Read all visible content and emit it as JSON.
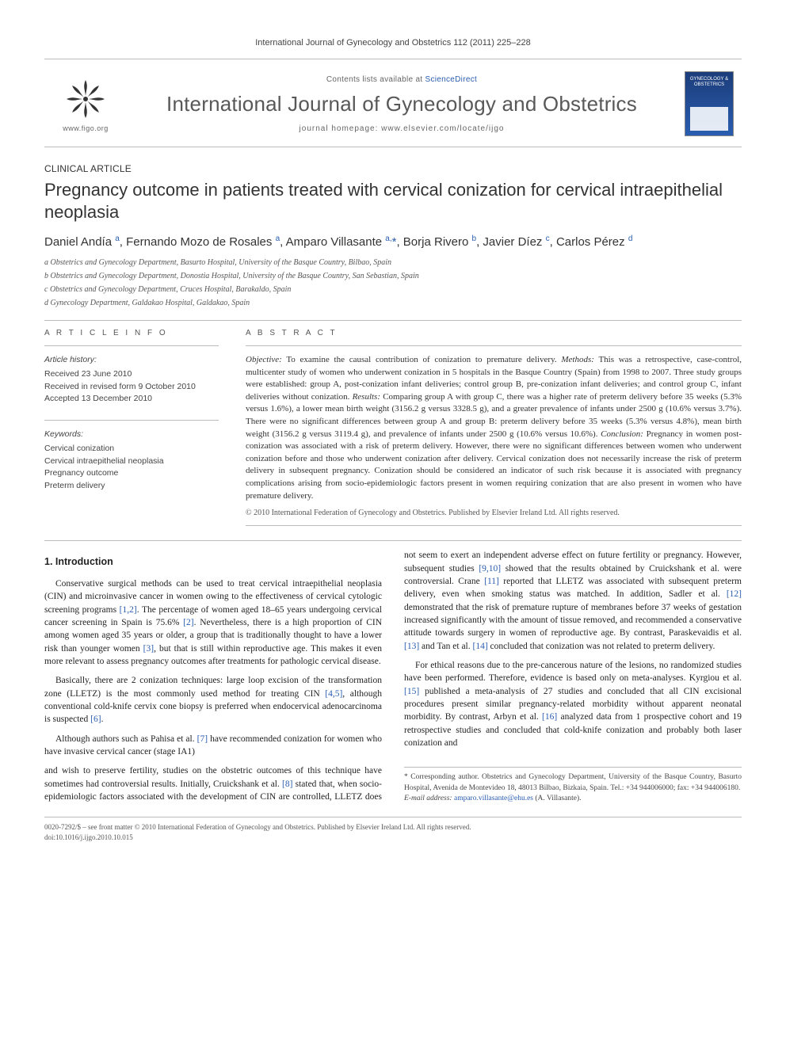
{
  "topline": "International Journal of Gynecology and Obstetrics 112 (2011) 225–228",
  "masthead": {
    "figo_url": "www.figo.org",
    "contents_prefix": "Contents lists available at ",
    "contents_link": "ScienceDirect",
    "journal_name": "International Journal of Gynecology and Obstetrics",
    "homepage_prefix": "journal homepage: ",
    "homepage_url": "www.elsevier.com/locate/ijgo",
    "cover_text": "GYNECOLOGY & OBSTETRICS"
  },
  "article_type": "CLINICAL ARTICLE",
  "title": "Pregnancy outcome in patients treated with cervical conization for cervical intraepithelial neoplasia",
  "authors_html": "Daniel Andía <sup>a</sup>, Fernando Mozo de Rosales <sup>a</sup>, Amparo Villasante <sup>a,</sup><span class='star'>*</span>, Borja Rivero <sup>b</sup>, Javier Díez <sup>c</sup>, Carlos Pérez <sup>d</sup>",
  "affiliations": [
    "a  Obstetrics and Gynecology Department, Basurto Hospital, University of the Basque Country, Bilbao, Spain",
    "b  Obstetrics and Gynecology Department, Donostia Hospital, University of the Basque Country, San Sebastian, Spain",
    "c  Obstetrics and Gynecology Department, Cruces Hospital, Barakaldo, Spain",
    "d  Gynecology Department, Galdakao Hospital, Galdakao, Spain"
  ],
  "info_heading": "A R T I C L E    I N F O",
  "abstract_heading": "A B S T R A C T",
  "history": {
    "label": "Article history:",
    "lines": [
      "Received 23 June 2010",
      "Received in revised form 9 October 2010",
      "Accepted 13 December 2010"
    ]
  },
  "keywords": {
    "label": "Keywords:",
    "items": [
      "Cervical conization",
      "Cervical intraepithelial neoplasia",
      "Pregnancy outcome",
      "Preterm delivery"
    ]
  },
  "abstract": {
    "objective_label": "Objective:",
    "objective": " To examine the causal contribution of conization to premature delivery. ",
    "methods_label": "Methods:",
    "methods": " This was a retrospective, case-control, multicenter study of women who underwent conization in 5 hospitals in the Basque Country (Spain) from 1998 to 2007. Three study groups were established: group A, post-conization infant deliveries; control group B, pre-conization infant deliveries; and control group C, infant deliveries without conization. ",
    "results_label": "Results:",
    "results": " Comparing group A with group C, there was a higher rate of preterm delivery before 35 weeks (5.3% versus 1.6%), a lower mean birth weight (3156.2 g versus 3328.5 g), and a greater prevalence of infants under 2500 g (10.6% versus 3.7%). There were no significant differences between group A and group B: preterm delivery before 35 weeks (5.3% versus 4.8%), mean birth weight (3156.2 g versus 3119.4 g), and prevalence of infants under 2500 g (10.6% versus 10.6%). ",
    "conclusion_label": "Conclusion:",
    "conclusion": " Pregnancy in women post-conization was associated with a risk of preterm delivery. However, there were no significant differences between women who underwent conization before and those who underwent conization after delivery. Cervical conization does not necessarily increase the risk of preterm delivery in subsequent pregnancy. Conization should be considered an indicator of such risk because it is associated with pregnancy complications arising from socio-epidemiologic factors present in women requiring conization that are also present in women who have premature delivery.",
    "copyright": "© 2010 International Federation of Gynecology and Obstetrics. Published by Elsevier Ireland Ltd. All rights reserved."
  },
  "intro_heading": "1. Introduction",
  "body": {
    "p1a": "Conservative surgical methods can be used to treat cervical intraepithelial neoplasia (CIN) and microinvasive cancer in women owing to the effectiveness of cervical cytologic screening programs ",
    "r1": "[1,2]",
    "p1b": ". The percentage of women aged 18–65 years undergoing cervical cancer screening in Spain is 75.6% ",
    "r2": "[2]",
    "p1c": ". Nevertheless, there is a high proportion of CIN among women aged 35 years or older, a group that is traditionally thought to have a lower risk than younger women ",
    "r3": "[3]",
    "p1d": ", but that is still within reproductive age. This makes it even more relevant to assess pregnancy outcomes after treatments for pathologic cervical disease.",
    "p2a": "Basically, there are 2 conization techniques: large loop excision of the transformation zone (LLETZ) is the most commonly used method for treating CIN ",
    "r4": "[4,5]",
    "p2b": ", although conventional cold-knife cervix cone biopsy is preferred when endocervical adenocarcinoma is suspected ",
    "r5": "[6]",
    "p2c": ".",
    "p3a": "Although authors such as Pahisa et al. ",
    "r6": "[7]",
    "p3b": " have recommended conization for women who have invasive cervical cancer (stage IA1)",
    "p4a": "and wish to preserve fertility, studies on the obstetric outcomes of this technique have sometimes had controversial results. Initially, Cruickshank et al. ",
    "r7": "[8]",
    "p4b": " stated that, when socio-epidemiologic factors associated with the development of CIN are controlled, LLETZ does not seem to exert an independent adverse effect on future fertility or pregnancy. However, subsequent studies ",
    "r8": "[9,10]",
    "p4c": " showed that the results obtained by Cruickshank et al. were controversial. Crane ",
    "r9": "[11]",
    "p4d": " reported that LLETZ was associated with subsequent preterm delivery, even when smoking status was matched. In addition, Sadler et al. ",
    "r10": "[12]",
    "p4e": " demonstrated that the risk of premature rupture of membranes before 37 weeks of gestation increased significantly with the amount of tissue removed, and recommended a conservative attitude towards surgery in women of reproductive age. By contrast, Paraskevaidis et al. ",
    "r11": "[13]",
    "p4f": " and Tan et al. ",
    "r12": "[14]",
    "p4g": " concluded that conization was not related to preterm delivery.",
    "p5a": "For ethical reasons due to the pre-cancerous nature of the lesions, no randomized studies have been performed. Therefore, evidence is based only on meta-analyses. Kyrgiou et al. ",
    "r13": "[15]",
    "p5b": " published a meta-analysis of 27 studies and concluded that all CIN excisional procedures present similar pregnancy-related morbidity without apparent neonatal morbidity. By contrast, Arbyn et al. ",
    "r14": "[16]",
    "p5c": " analyzed data from 1 prospective cohort and 19 retrospective studies and concluded that cold-knife conization and probably both laser conization and"
  },
  "footnote": {
    "corr": "* Corresponding author. Obstetrics and Gynecology Department, University of the Basque Country, Basurto Hospital, Avenida de Montevideo 18, 48013 Bilbao, Bizkaia, Spain. Tel.: +34 944006000; fax: +34 944006180.",
    "email_label": "E-mail address: ",
    "email": "amparo.villasante@ehu.es",
    "email_suffix": " (A. Villasante)."
  },
  "bottom": {
    "line1": "0020-7292/$ – see front matter © 2010 International Federation of Gynecology and Obstetrics. Published by Elsevier Ireland Ltd. All rights reserved.",
    "line2": "doi:10.1016/j.ijgo.2010.10.015"
  },
  "colors": {
    "link": "#2a5db0",
    "rule": "#bbbbbb",
    "text": "#222222",
    "muted": "#555555"
  }
}
